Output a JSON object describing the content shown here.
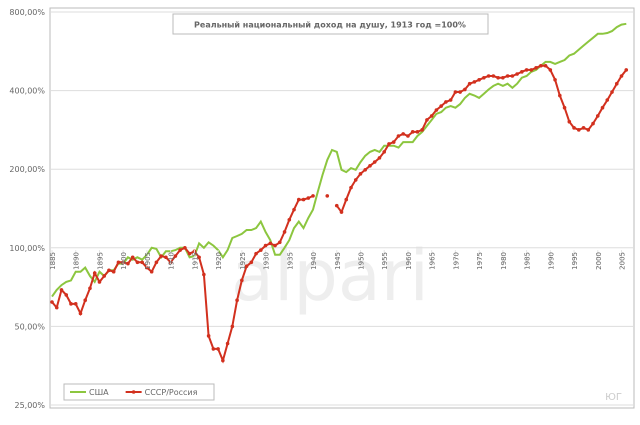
{
  "chart_data": {
    "type": "line",
    "title": "Реальный национальный доход на душу, 1913 год =100%",
    "watermark": "alpari",
    "corner_note": "ЮГ",
    "log_y": true,
    "grid": true,
    "legend": "lower left",
    "xlim": [
      1885,
      2007
    ],
    "xticks": [
      1885,
      1890,
      1895,
      1900,
      1905,
      1910,
      1915,
      1920,
      1925,
      1930,
      1935,
      1940,
      1945,
      1950,
      1955,
      1960,
      1965,
      1970,
      1975,
      1980,
      1985,
      1990,
      1995,
      2000,
      2005
    ],
    "ylim": [
      25,
      800
    ],
    "yticks": [
      {
        "value": 25,
        "label": "25,00%"
      },
      {
        "value": 50,
        "label": "50,00%"
      },
      {
        "value": 100,
        "label": "100,00%"
      },
      {
        "value": 200,
        "label": "200,00%"
      },
      {
        "value": 400,
        "label": "400,00%"
      },
      {
        "value": 800,
        "label": "800,00%"
      }
    ],
    "x": [
      1885,
      1886,
      1887,
      1888,
      1889,
      1890,
      1891,
      1892,
      1893,
      1894,
      1895,
      1896,
      1897,
      1898,
      1899,
      1900,
      1901,
      1902,
      1903,
      1904,
      1905,
      1906,
      1907,
      1908,
      1909,
      1910,
      1911,
      1912,
      1913,
      1914,
      1915,
      1916,
      1917,
      1918,
      1919,
      1920,
      1921,
      1922,
      1923,
      1924,
      1925,
      1926,
      1927,
      1928,
      1929,
      1930,
      1931,
      1932,
      1933,
      1934,
      1935,
      1936,
      1937,
      1938,
      1939,
      1940,
      1941,
      1942,
      1943,
      1944,
      1945,
      1946,
      1947,
      1948,
      1949,
      1950,
      1951,
      1952,
      1953,
      1954,
      1955,
      1956,
      1957,
      1958,
      1959,
      1960,
      1961,
      1962,
      1963,
      1964,
      1965,
      1966,
      1967,
      1968,
      1969,
      1970,
      1971,
      1972,
      1973,
      1974,
      1975,
      1976,
      1977,
      1978,
      1979,
      1980,
      1981,
      1982,
      1983,
      1984,
      1985,
      1986,
      1987,
      1988,
      1989,
      1990,
      1991,
      1992,
      1993,
      1994,
      1995,
      1996,
      1997,
      1998,
      1999,
      2000,
      2001,
      2002,
      2003,
      2004,
      2005,
      2006
    ],
    "series": [
      {
        "name": "США",
        "color": "#8cc63f",
        "markers": false,
        "values": [
          65,
          69,
          72,
          74,
          75,
          81,
          81,
          84,
          78,
          74,
          81,
          78,
          82,
          82,
          87,
          87,
          92,
          90,
          92,
          90,
          94,
          100,
          99,
          92,
          97,
          97,
          98,
          100,
          100,
          92,
          93,
          104,
          100,
          105,
          102,
          98,
          92,
          98,
          109,
          111,
          113,
          117,
          117,
          119,
          126,
          115,
          107,
          94,
          94,
          100,
          107,
          119,
          126,
          119,
          130,
          140,
          164,
          190,
          217,
          237,
          233,
          199,
          195,
          202,
          199,
          213,
          225,
          233,
          237,
          233,
          246,
          246,
          246,
          242,
          254,
          254,
          254,
          268,
          278,
          293,
          309,
          326,
          331,
          344,
          349,
          344,
          355,
          375,
          389,
          383,
          375,
          389,
          404,
          417,
          425,
          417,
          425,
          410,
          425,
          448,
          455,
          472,
          480,
          498,
          515,
          515,
          506,
          515,
          524,
          545,
          554,
          574,
          595,
          616,
          637,
          660,
          660,
          665,
          676,
          700,
          716,
          721
        ]
      },
      {
        "name": "СССР/Россия",
        "color": "#d2301e",
        "markers": true,
        "values": [
          62,
          59,
          69,
          66,
          61,
          61,
          56,
          63,
          70,
          80,
          74,
          78,
          82,
          81,
          88,
          88,
          87,
          92,
          88,
          88,
          84,
          81,
          88,
          93,
          92,
          88,
          93,
          98,
          100,
          95,
          97,
          92,
          79,
          46,
          41,
          41,
          37,
          43,
          50,
          63,
          75,
          85,
          88,
          95,
          98,
          102,
          104,
          102,
          105,
          115,
          128,
          140,
          153,
          153,
          155,
          158,
          null,
          null,
          158,
          null,
          145,
          137,
          153,
          170,
          182,
          192,
          199,
          206,
          213,
          221,
          233,
          250,
          254,
          268,
          273,
          268,
          278,
          278,
          283,
          309,
          320,
          337,
          349,
          362,
          368,
          395,
          395,
          404,
          425,
          432,
          440,
          448,
          455,
          455,
          448,
          448,
          455,
          455,
          463,
          472,
          480,
          480,
          489,
          498,
          498,
          480,
          440,
          383,
          344,
          304,
          288,
          283,
          288,
          283,
          299,
          320,
          344,
          368,
          395,
          425,
          455,
          480
        ]
      }
    ]
  }
}
